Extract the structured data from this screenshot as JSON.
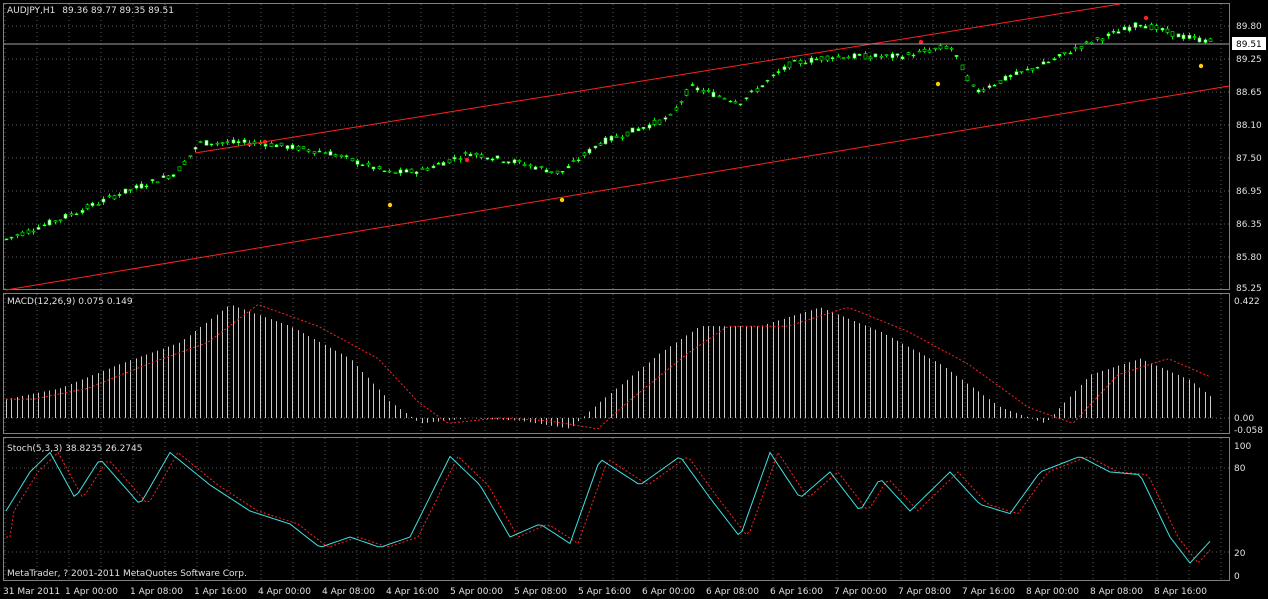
{
  "header": {
    "symbol_label": "AUDJPY,H1",
    "ohlc_label": "89.36 89.77 89.35 89.51"
  },
  "price_axis": {
    "ticks": [
      "89.80",
      "89.25",
      "88.65",
      "88.10",
      "87.50",
      "86.95",
      "86.35",
      "85.80",
      "85.25"
    ],
    "current_price": "89.51"
  },
  "macd": {
    "label": "MACD(12,26,9) 0.075 0.149",
    "ticks": [
      "0.422",
      "0.00",
      "-0.058"
    ]
  },
  "stoch": {
    "label": "Stoch(5,3,3) 38.8235 26.2745",
    "ticks": [
      "100",
      "80",
      "20",
      "0"
    ]
  },
  "footer": {
    "copyright": "MetaTrader, ? 2001-2011 MetaQuotes Software Corp."
  },
  "time_axis": {
    "labels": [
      "31 Mar 2011",
      "1 Apr 00:00",
      "1 Apr 08:00",
      "1 Apr 16:00",
      "4 Apr 00:00",
      "4 Apr 08:00",
      "4 Apr 16:00",
      "5 Apr 00:00",
      "5 Apr 08:00",
      "5 Apr 16:00",
      "6 Apr 00:00",
      "6 Apr 08:00",
      "6 Apr 16:00",
      "7 Apr 00:00",
      "7 Apr 08:00",
      "7 Apr 16:00",
      "8 Apr 00:00",
      "8 Apr 08:00",
      "8 Apr 16:00"
    ]
  },
  "colors": {
    "background": "#000000",
    "grid": "#5a5a5a",
    "bull_body": "#ffffff",
    "bear_body": "#000000",
    "candle_line": "#00ff00",
    "channel": "#ff2020",
    "fractal_up": "#ff2020",
    "fractal_down": "#ffd000",
    "macd_hist": "#c8c8c8",
    "macd_signal": "#ff2020",
    "stoch_main": "#40e0e0",
    "stoch_signal": "#ff2020",
    "text": "#e0e0e0"
  }
}
